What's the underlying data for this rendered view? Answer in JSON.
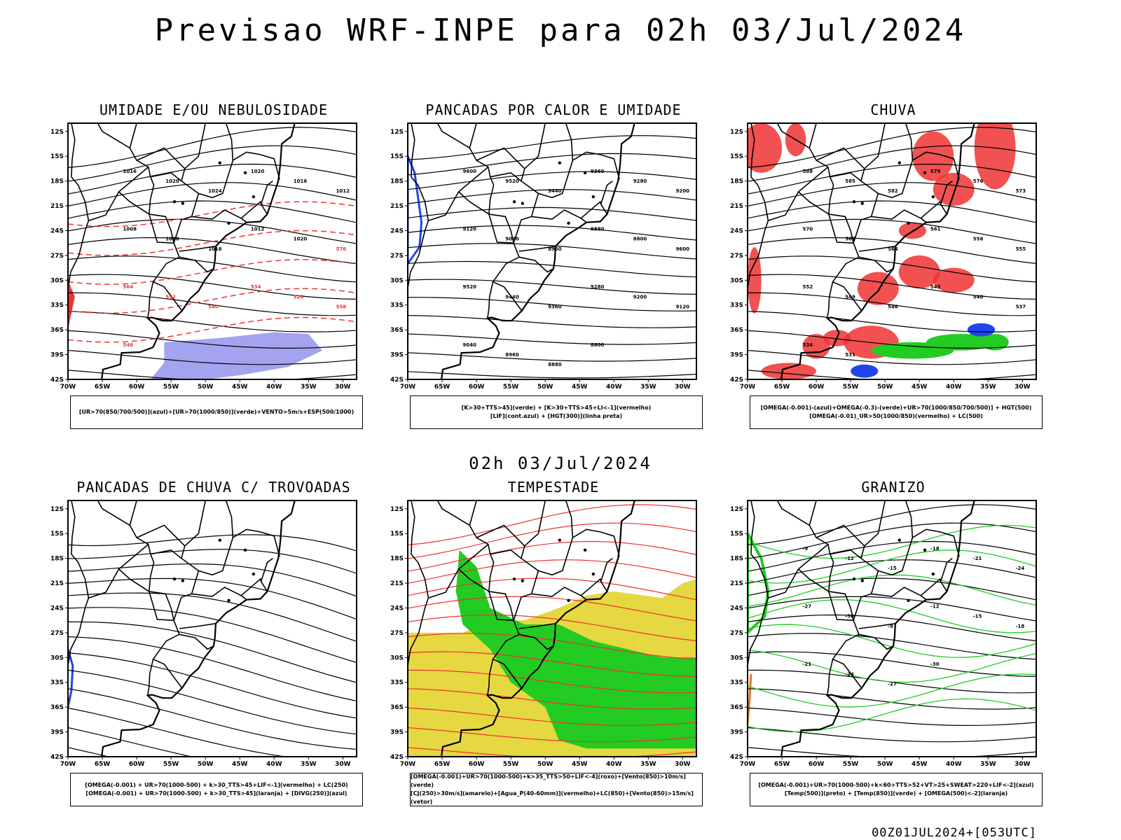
{
  "title": "Previsao WRF-INPE  para 02h 03/Jul/2024",
  "subtitle": "02h 03/Jul/2024",
  "footer": "00Z01JUL2024+[053UTC]",
  "axes": {
    "lat_labels": [
      "12S",
      "15S",
      "18S",
      "21S",
      "24S",
      "27S",
      "30S",
      "33S",
      "36S",
      "39S",
      "42S"
    ],
    "lon_labels": [
      "70W",
      "65W",
      "60W",
      "55W",
      "50W",
      "45W",
      "40W",
      "35W",
      "30W"
    ]
  },
  "colors": {
    "blue": "#2244ee",
    "lavender": "#9999ee",
    "green": "#22cc22",
    "red": "#ee3333",
    "yellow": "#e6d840",
    "orange": "#dd7722",
    "violet": "#cc22cc"
  },
  "panels": [
    {
      "title": "UMIDADE E/OU NEBULOSIDADE",
      "legend": [
        "[UR>70(850/700/500)](azul)+[UR>70(1000/850)](verde)+VENTO>5m/s+ESP(500/1000)"
      ],
      "contour_labels": [
        "1016",
        "1020",
        "1024",
        "1020",
        "1016",
        "1012",
        "1008",
        "1020",
        "1016",
        "1012",
        "1020",
        "576",
        "564",
        "552",
        "540",
        "534",
        "528",
        "558",
        "546"
      ]
    },
    {
      "title": "PANCADAS POR CALOR E UMIDADE",
      "legend": [
        "[K>30+TTS>45](verde) + [K>30+TTS>45+LI<-1](vermelho)",
        "[LIF](cont.azul) + [HGT(300)](linha preta)"
      ],
      "contour_labels": [
        "9600",
        "9520",
        "9440",
        "9360",
        "9280",
        "9200",
        "9120",
        "9040",
        "8960",
        "8880",
        "8800",
        "9600",
        "9520",
        "9440",
        "9360",
        "9280",
        "9200",
        "9120",
        "9040",
        "8960",
        "8880",
        "8800"
      ]
    },
    {
      "title": "CHUVA",
      "legend": [
        "[OMEGA(-0.001)-(azul)+OMEGA(-0.3)-(verde)+UR>70(1000/850/700/500)] + HGT(500)",
        "[OMEGA(-0.01)_UR>50(1000/850)(vermelho) + LC(500)"
      ],
      "contour_labels": [
        "588",
        "585",
        "582",
        "579",
        "576",
        "573",
        "570",
        "567",
        "564",
        "561",
        "558",
        "555",
        "552",
        "549",
        "546",
        "543",
        "540",
        "537",
        "534",
        "531"
      ]
    },
    {
      "title": "PANCADAS DE CHUVA C/ TROVOADAS",
      "legend": [
        "[OMEGA(-0.001) + UR>70(1000-500) + k>30_TTS>45+LIF<-1](vermelho) + LC(250)",
        "[OMEGA(-0.001) + UR>70(1000-500) + k>30_TTS>45](laranja) + [DIVG(250)](azul)"
      ],
      "contour_labels": []
    },
    {
      "title": "TEMPESTADE",
      "legend": [
        "[OMEGA(-0.001)+UR>70(1000-500)+k>35_TTS>50+LIF<-4](roxo)+[Vento(850)>10m/s](verde)",
        "[CJ(250)>30m/s](amarelo)+[Agua_P(40-60mm)](vermelho)+LC(850)+[Vento(850)>15m/s](vetor)"
      ],
      "contour_labels": []
    },
    {
      "title": "GRANIZO",
      "legend": [
        "[OMEGA(-0.001)+UR>70(1000-500)+k<60+TTS>52+VT>25+SWEAT>220+LIF<-2](azul)",
        "[Temp(500)](preto) + [Temp(850)](verde) + [OMEGA(500)<-2](laranja)"
      ],
      "contour_labels": [
        "-9",
        "-12",
        "-15",
        "-18",
        "-21",
        "-24",
        "-27",
        "-30",
        "-9",
        "-12",
        "-15",
        "-18",
        "-21",
        "-24",
        "-27",
        "-30"
      ]
    }
  ]
}
